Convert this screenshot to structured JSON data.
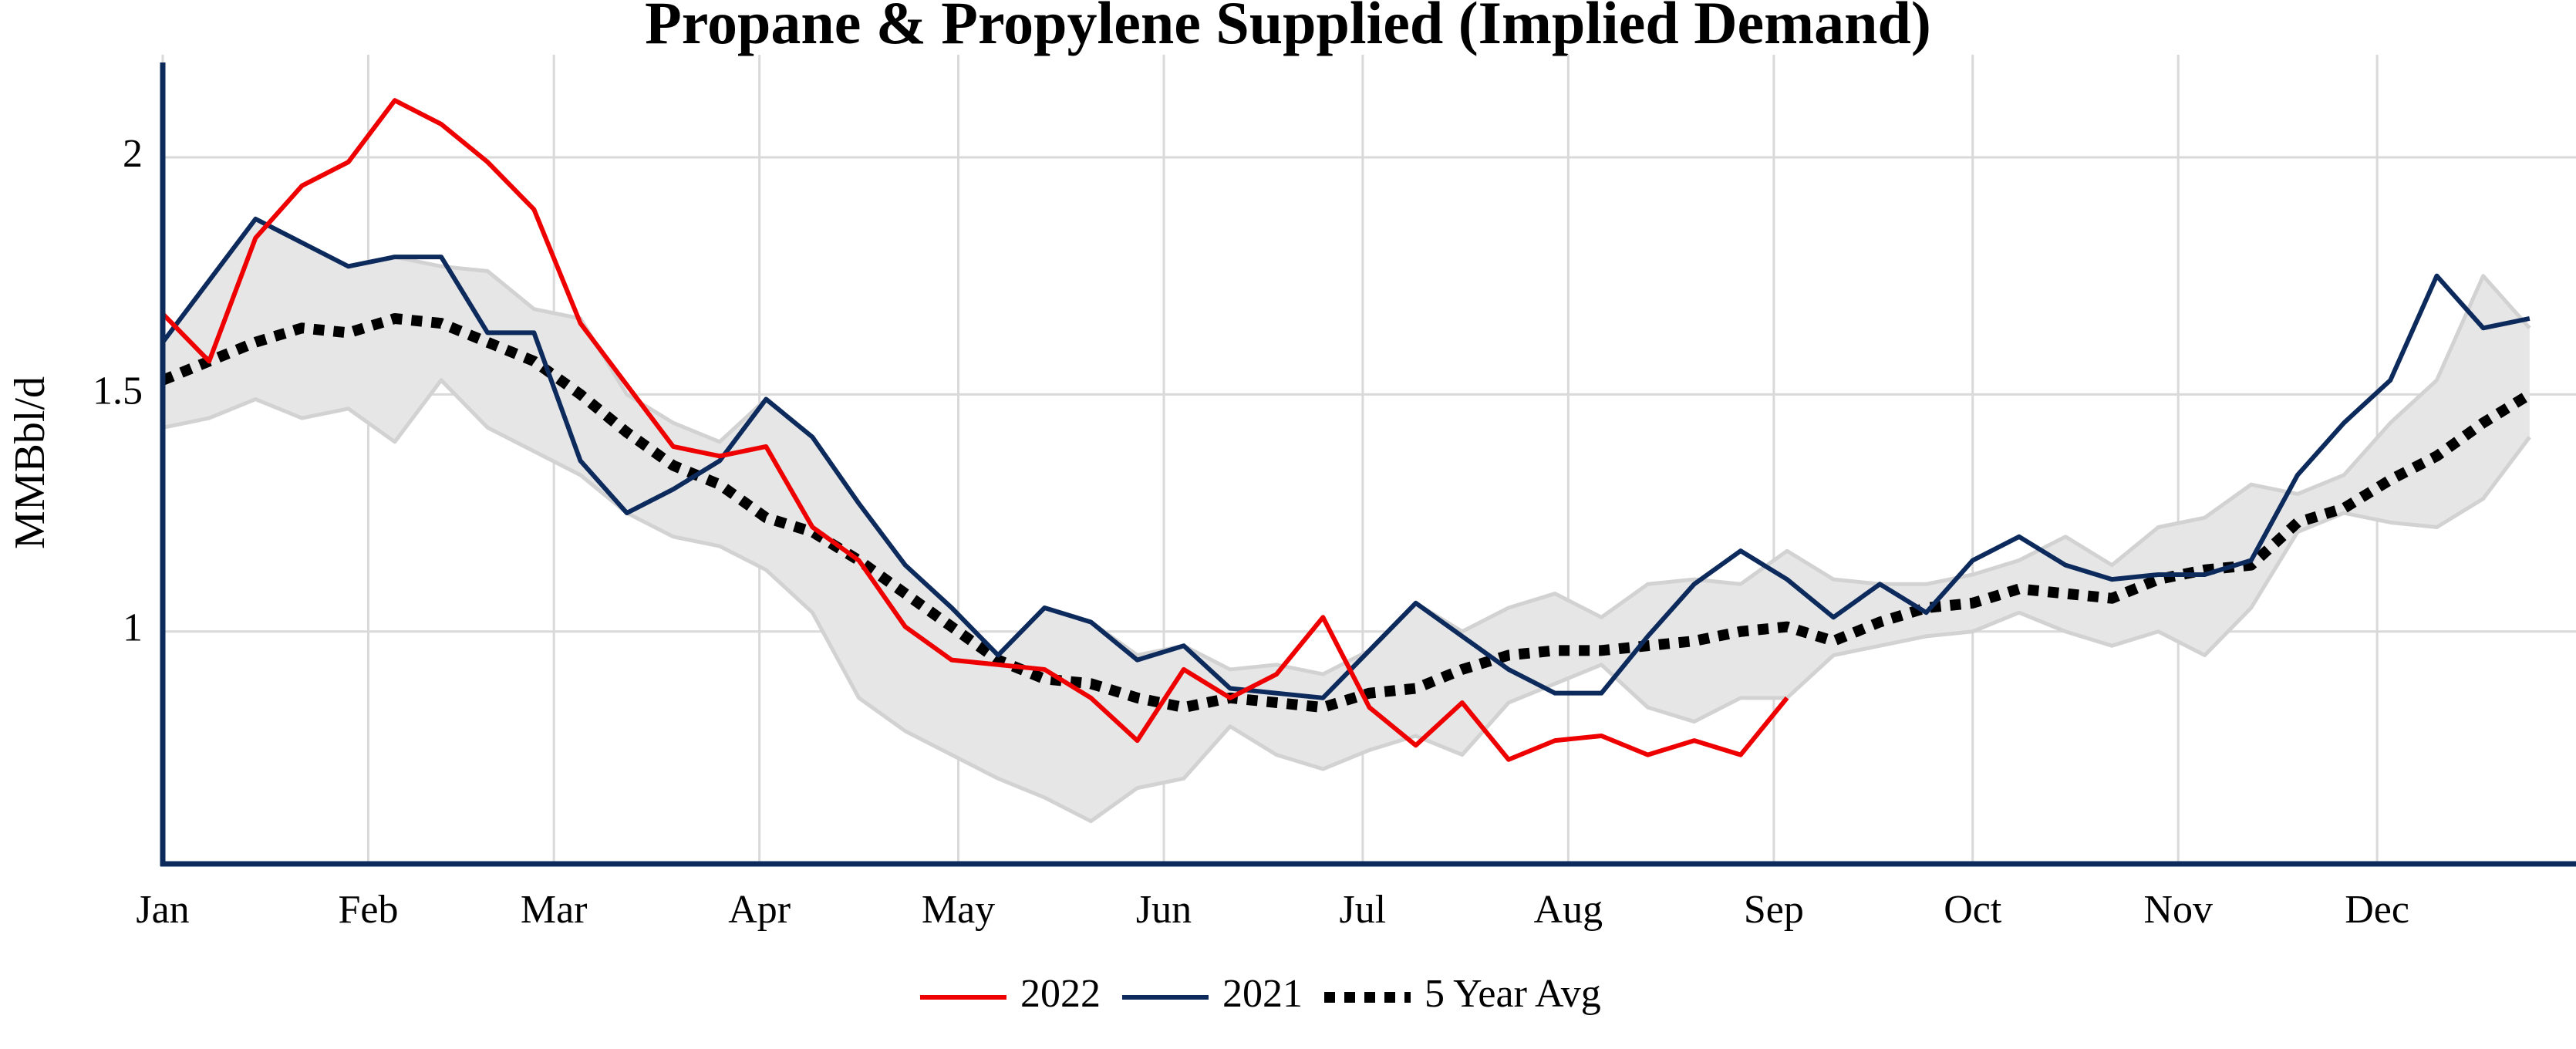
{
  "chart_data": {
    "type": "line",
    "title": "Propane & Propylene Supplied (Implied Demand)",
    "y_label": "MMBbl/d",
    "x": [
      1,
      8,
      15,
      22,
      29,
      36,
      43,
      50,
      57,
      64,
      71,
      78,
      85,
      92,
      99,
      106,
      113,
      120,
      127,
      134,
      141,
      148,
      155,
      162,
      169,
      176,
      183,
      190,
      197,
      204,
      211,
      218,
      225,
      232,
      239,
      246,
      253,
      260,
      267,
      274,
      281,
      288,
      295,
      302,
      309,
      316,
      323,
      330,
      337,
      344,
      351,
      358
    ],
    "xlim": [
      1,
      365
    ],
    "xticks": [
      {
        "value": 1,
        "label": "Jan"
      },
      {
        "value": 32,
        "label": "Feb"
      },
      {
        "value": 60,
        "label": "Mar"
      },
      {
        "value": 91,
        "label": "Apr"
      },
      {
        "value": 121,
        "label": "May"
      },
      {
        "value": 152,
        "label": "Jun"
      },
      {
        "value": 182,
        "label": "Jul"
      },
      {
        "value": 213,
        "label": "Aug"
      },
      {
        "value": 244,
        "label": "Sep"
      },
      {
        "value": 274,
        "label": "Oct"
      },
      {
        "value": 305,
        "label": "Nov"
      },
      {
        "value": 335,
        "label": "Dec"
      }
    ],
    "ylim": [
      0.51,
      2.2
    ],
    "yticks": [
      1,
      1.5,
      2
    ],
    "grid": true,
    "legend": "bottom",
    "band": {
      "color": "#e6e6e6",
      "edge_color": "#d2d2d2",
      "upper": [
        1.61,
        1.74,
        1.87,
        1.82,
        1.77,
        1.79,
        1.77,
        1.76,
        1.68,
        1.66,
        1.5,
        1.44,
        1.4,
        1.49,
        1.41,
        1.27,
        1.14,
        1.05,
        0.95,
        1.05,
        1.02,
        0.95,
        0.97,
        0.92,
        0.93,
        0.91,
        0.96,
        1.06,
        1.0,
        1.05,
        1.08,
        1.03,
        1.1,
        1.11,
        1.1,
        1.17,
        1.11,
        1.1,
        1.1,
        1.12,
        1.15,
        1.2,
        1.14,
        1.22,
        1.24,
        1.31,
        1.29,
        1.33,
        1.44,
        1.53,
        1.75,
        1.64
      ],
      "lower": [
        1.43,
        1.45,
        1.49,
        1.45,
        1.47,
        1.4,
        1.53,
        1.43,
        1.38,
        1.33,
        1.25,
        1.2,
        1.18,
        1.13,
        1.04,
        0.86,
        0.79,
        0.74,
        0.69,
        0.65,
        0.6,
        0.67,
        0.69,
        0.8,
        0.74,
        0.71,
        0.75,
        0.78,
        0.74,
        0.85,
        0.89,
        0.93,
        0.84,
        0.81,
        0.86,
        0.86,
        0.95,
        0.97,
        0.99,
        1.0,
        1.04,
        1.0,
        0.97,
        1.0,
        0.95,
        1.05,
        1.21,
        1.25,
        1.23,
        1.22,
        1.28,
        1.41
      ]
    },
    "series": [
      {
        "name": "2022",
        "color": "#ee0000",
        "dash": false,
        "values": [
          1.67,
          1.57,
          1.83,
          1.94,
          1.99,
          2.12,
          2.07,
          1.99,
          1.89,
          1.65,
          1.52,
          1.39,
          1.37,
          1.39,
          1.22,
          1.15,
          1.01,
          0.94,
          0.93,
          0.92,
          0.86,
          0.77,
          0.92,
          0.86,
          0.91,
          1.03,
          0.84,
          0.76,
          0.85,
          0.73,
          0.77,
          0.78,
          0.74,
          0.77,
          0.74,
          0.86,
          null,
          null,
          null,
          null,
          null,
          null,
          null,
          null,
          null,
          null,
          null,
          null,
          null,
          null,
          null,
          null
        ]
      },
      {
        "name": "2021",
        "color": "#0d2a5c",
        "dash": false,
        "values": [
          1.61,
          1.74,
          1.87,
          1.82,
          1.77,
          1.79,
          1.79,
          1.63,
          1.63,
          1.36,
          1.25,
          1.3,
          1.36,
          1.49,
          1.41,
          1.27,
          1.14,
          1.05,
          0.95,
          1.05,
          1.02,
          0.94,
          0.97,
          0.88,
          0.87,
          0.86,
          0.96,
          1.06,
          0.99,
          0.92,
          0.87,
          0.87,
          0.99,
          1.1,
          1.17,
          1.11,
          1.03,
          1.1,
          1.04,
          1.15,
          1.2,
          1.14,
          1.11,
          1.12,
          1.12,
          1.15,
          1.33,
          1.44,
          1.53,
          1.75,
          1.64,
          1.66
        ]
      },
      {
        "name": "5 Year Avg",
        "color": "#000000",
        "dash": true,
        "values": [
          1.53,
          1.57,
          1.61,
          1.64,
          1.63,
          1.66,
          1.65,
          1.61,
          1.57,
          1.5,
          1.42,
          1.35,
          1.31,
          1.24,
          1.21,
          1.15,
          1.08,
          1.01,
          0.94,
          0.9,
          0.89,
          0.86,
          0.84,
          0.86,
          0.85,
          0.84,
          0.87,
          0.88,
          0.92,
          0.95,
          0.96,
          0.96,
          0.97,
          0.98,
          1.0,
          1.01,
          0.98,
          1.02,
          1.05,
          1.06,
          1.09,
          1.08,
          1.07,
          1.11,
          1.13,
          1.14,
          1.23,
          1.26,
          1.32,
          1.37,
          1.44,
          1.5
        ]
      }
    ]
  }
}
